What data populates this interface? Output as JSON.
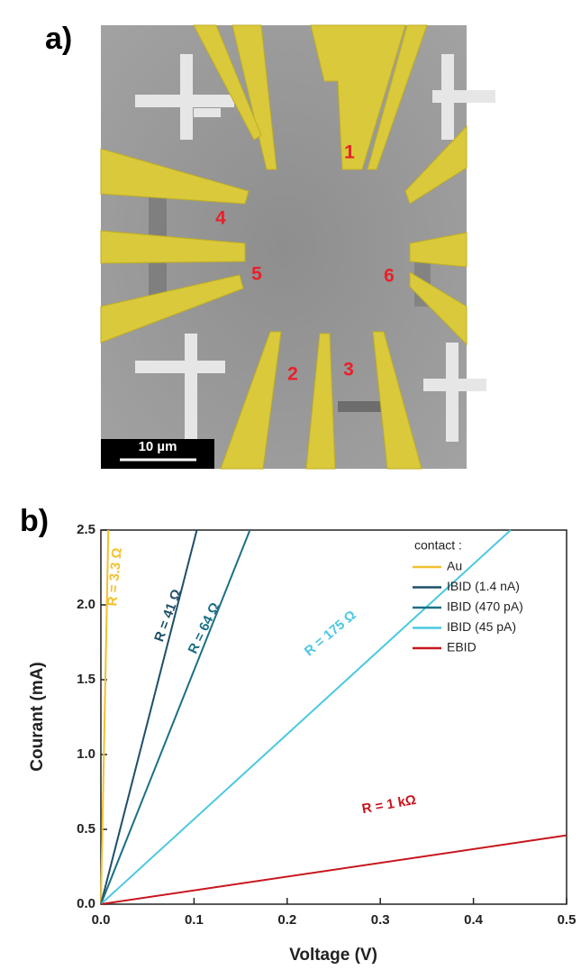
{
  "panel_a": {
    "label": "a)",
    "electrodes": [
      "1",
      "2",
      "3",
      "4",
      "5",
      "6"
    ],
    "scale_bar": "10 µm"
  },
  "chart_data": {
    "type": "line",
    "panel_label": "b)",
    "x_label": "Voltage (V)",
    "y_label": "Courant (mA)",
    "xlim": [
      0,
      0.5
    ],
    "ylim": [
      0,
      2.5
    ],
    "xticks": [
      {
        "value": 0,
        "label": "0.0"
      },
      0.1,
      0.2,
      0.3,
      0.4,
      0.5
    ],
    "yticks": [
      {
        "value": 0,
        "label": "0.0"
      },
      0.5,
      {
        "value": 1,
        "label": "1.0"
      },
      1.5,
      {
        "value": 2,
        "label": "2.0"
      },
      2.5
    ],
    "legend_title": "contact :",
    "legend": "upper right",
    "series": [
      {
        "name": "Au",
        "color": "#f2c12e",
        "x": [
          0,
          0.008
        ],
        "values": [
          0,
          2.5
        ]
      },
      {
        "name": "IBID (1.4 nA)",
        "color": "#1f4e6b",
        "x": [
          0,
          0.103
        ],
        "values": [
          0,
          2.5
        ]
      },
      {
        "name": "IBID (470 pA)",
        "color": "#1d6f86",
        "x": [
          0,
          0.16
        ],
        "values": [
          0,
          2.5
        ]
      },
      {
        "name": "IBID (45 pA)",
        "color": "#4cc8e0",
        "x": [
          0,
          0.44
        ],
        "values": [
          0,
          2.5
        ]
      },
      {
        "name": "EBID",
        "color": "#c8161d",
        "x": [
          0,
          0.5
        ],
        "values": [
          0,
          0.46
        ]
      }
    ],
    "annotations": [
      "R = 3.3 Ω",
      "R = 41 Ω",
      "R = 64 Ω",
      "R = 175 Ω",
      "R = 1 kΩ"
    ]
  }
}
